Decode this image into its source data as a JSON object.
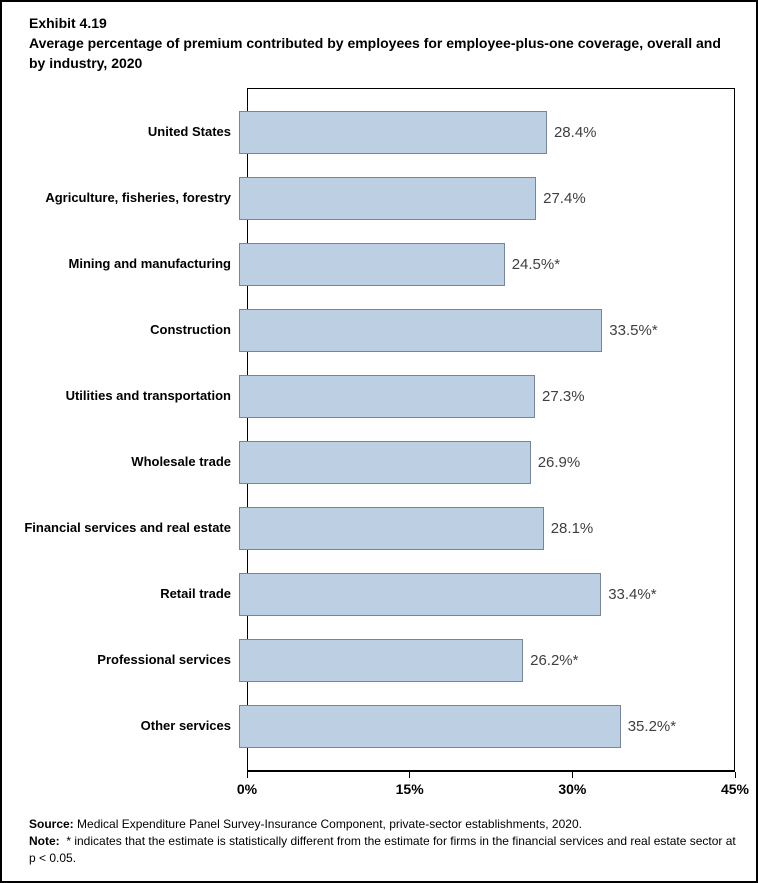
{
  "title": {
    "exhibit": "Exhibit 4.19",
    "text": "Average percentage of premium contributed by employees for employee-plus-one coverage, overall and by industry, 2020"
  },
  "chart_data": {
    "type": "bar",
    "orientation": "horizontal",
    "title": "Average percentage of premium contributed by employees for employee-plus-one coverage, overall and by industry, 2020",
    "categories": [
      "United States",
      "Agriculture, fisheries, forestry",
      "Mining and manufacturing",
      "Construction",
      "Utilities and transportation",
      "Wholesale trade",
      "Financial services and real estate",
      "Retail trade",
      "Professional services",
      "Other services"
    ],
    "values": [
      28.4,
      27.4,
      24.5,
      33.5,
      27.3,
      26.9,
      28.1,
      33.4,
      26.2,
      35.2
    ],
    "value_labels": [
      "28.4%",
      "27.4%",
      "24.5%*",
      "33.5%*",
      "27.3%",
      "26.9%",
      "28.1%",
      "33.4%*",
      "26.2%*",
      "35.2%*"
    ],
    "xlim": [
      0,
      45
    ],
    "xtick_values": [
      0,
      15,
      30,
      45
    ],
    "xtick_labels": [
      "0%",
      "15%",
      "30%",
      "45%"
    ],
    "grid": false,
    "legend": false,
    "bar_fill": "#bccfe3",
    "bar_border": "#7a8591"
  },
  "footer": {
    "source_label": "Source:",
    "source_text": " Medical Expenditure Panel Survey-Insurance Component, private-sector establishments, 2020.",
    "note_label": "Note:",
    "note_text": "  * indicates that the estimate is statistically different from the estimate for firms in the financial services and real estate sector at p < 0.05."
  }
}
